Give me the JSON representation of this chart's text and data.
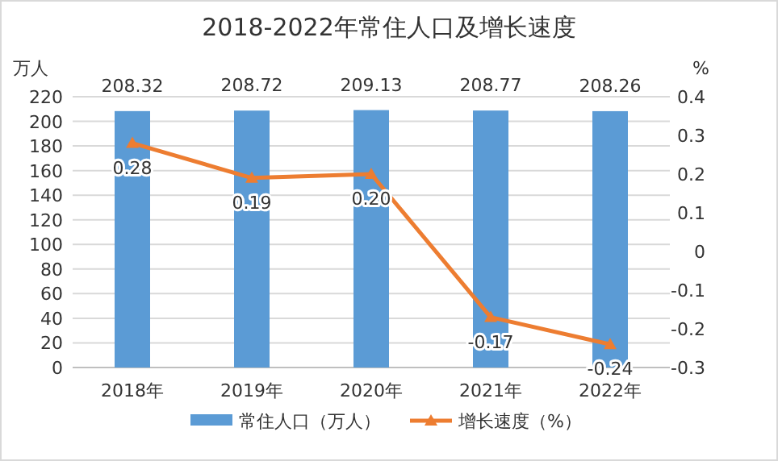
{
  "chart_data": {
    "type": "bar",
    "title": "2018-2022年常住人口及增长速度",
    "ylabel": "万人",
    "y2label": "%",
    "categories": [
      "2018年",
      "2019年",
      "2020年",
      "2021年",
      "2022年"
    ],
    "series": [
      {
        "name": "常住人口（万人）",
        "color": "#5b9bd5",
        "values": [
          208.32,
          208.72,
          209.13,
          208.77,
          208.26
        ]
      },
      {
        "name": "增长速度（%）",
        "type": "line",
        "axis": "y2",
        "color": "#ed7d31",
        "marker": "triangle",
        "values": [
          0.28,
          0.19,
          0.2,
          -0.17,
          -0.24
        ],
        "value_labels": [
          "0.28",
          "0.19",
          "0.20",
          "-0.17",
          "-0.24"
        ]
      }
    ],
    "ylim": [
      0,
      220
    ],
    "yticks": [
      0,
      20,
      40,
      60,
      80,
      100,
      120,
      140,
      160,
      180,
      200,
      220
    ],
    "y2lim": [
      -0.3,
      0.4
    ],
    "y2ticks": [
      {
        "value": -0.3,
        "label": "-0.3"
      },
      {
        "value": -0.2,
        "label": "-0.2"
      },
      {
        "value": -0.1,
        "label": "-0.1"
      },
      {
        "value": 0,
        "label": "0"
      },
      {
        "value": 0.1,
        "label": "0.1"
      },
      {
        "value": 0.2,
        "label": "0.2"
      },
      {
        "value": 0.3,
        "label": "0.3"
      },
      {
        "value": 0.4,
        "label": "0.4"
      }
    ],
    "grid": "y",
    "legend": "bottom",
    "data_labels": true
  }
}
